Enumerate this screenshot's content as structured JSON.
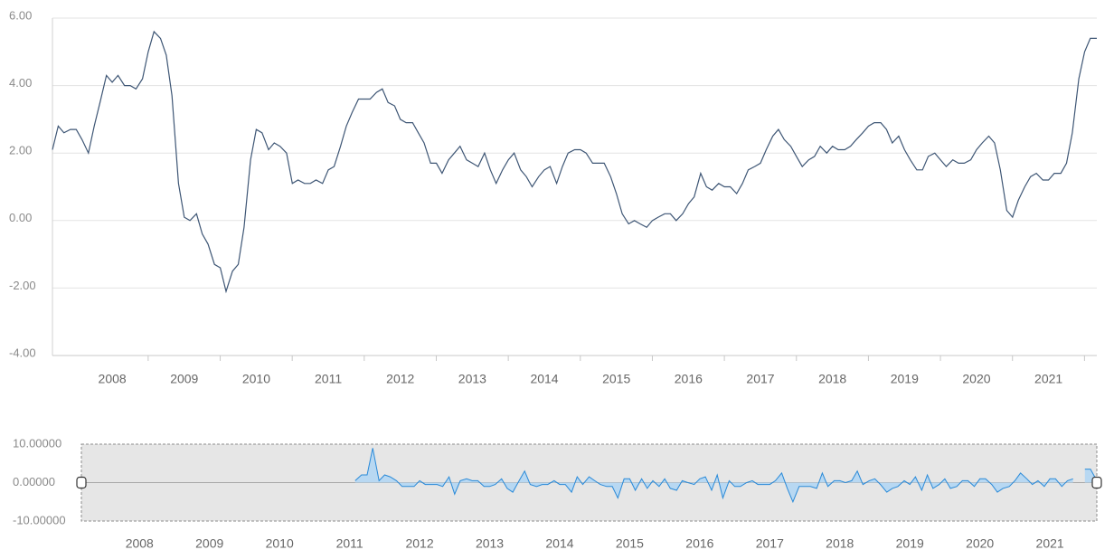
{
  "chart_data": [
    {
      "type": "line",
      "color": "#3e5675",
      "grid": true,
      "xlim": [
        2007.17,
        2021.67
      ],
      "ylim": [
        -4,
        6
      ],
      "xticks": [
        2008,
        2009,
        2010,
        2011,
        2012,
        2013,
        2014,
        2015,
        2016,
        2017,
        2018,
        2019,
        2020,
        2021
      ],
      "yticks": [
        {
          "value": 6,
          "label": "6.00"
        },
        {
          "value": 4,
          "label": "4.00"
        },
        {
          "value": 2,
          "label": "2.00"
        },
        {
          "value": 0,
          "label": "0.00"
        },
        {
          "value": -2,
          "label": "-2.00"
        },
        {
          "value": -4,
          "label": "-4.00"
        }
      ],
      "x": [
        2007.17,
        2007.25,
        2007.33,
        2007.42,
        2007.5,
        2007.58,
        2007.67,
        2007.75,
        2007.83,
        2007.92,
        2008,
        2008.08,
        2008.17,
        2008.25,
        2008.33,
        2008.42,
        2008.5,
        2008.58,
        2008.67,
        2008.75,
        2008.83,
        2008.92,
        2009,
        2009.08,
        2009.17,
        2009.25,
        2009.33,
        2009.42,
        2009.5,
        2009.58,
        2009.67,
        2009.75,
        2009.83,
        2009.92,
        2010,
        2010.08,
        2010.17,
        2010.25,
        2010.33,
        2010.42,
        2010.5,
        2010.58,
        2010.67,
        2010.75,
        2010.83,
        2010.92,
        2011,
        2011.08,
        2011.17,
        2011.25,
        2011.33,
        2011.42,
        2011.5,
        2011.58,
        2011.67,
        2011.75,
        2011.83,
        2011.92,
        2012,
        2012.08,
        2012.17,
        2012.25,
        2012.33,
        2012.42,
        2012.5,
        2012.58,
        2012.67,
        2012.75,
        2012.83,
        2012.92,
        2013,
        2013.08,
        2013.17,
        2013.25,
        2013.33,
        2013.42,
        2013.5,
        2013.58,
        2013.67,
        2013.75,
        2013.83,
        2013.92,
        2014,
        2014.08,
        2014.17,
        2014.25,
        2014.33,
        2014.42,
        2014.5,
        2014.58,
        2014.67,
        2014.75,
        2014.83,
        2014.92,
        2015,
        2015.08,
        2015.17,
        2015.25,
        2015.33,
        2015.42,
        2015.5,
        2015.58,
        2015.67,
        2015.75,
        2015.83,
        2015.92,
        2016,
        2016.08,
        2016.17,
        2016.25,
        2016.33,
        2016.42,
        2016.5,
        2016.58,
        2016.67,
        2016.75,
        2016.83,
        2016.92,
        2017,
        2017.08,
        2017.17,
        2017.25,
        2017.33,
        2017.42,
        2017.5,
        2017.58,
        2017.67,
        2017.75,
        2017.83,
        2017.92,
        2018,
        2018.08,
        2018.17,
        2018.25,
        2018.33,
        2018.42,
        2018.5,
        2018.58,
        2018.67,
        2018.75,
        2018.83,
        2018.92,
        2019,
        2019.08,
        2019.17,
        2019.25,
        2019.33,
        2019.42,
        2019.5,
        2019.58,
        2019.67,
        2019.75,
        2019.83,
        2019.92,
        2020,
        2020.08,
        2020.17,
        2020.25,
        2020.33,
        2020.42,
        2020.5,
        2020.58,
        2020.67,
        2020.75,
        2020.83,
        2020.92,
        2021,
        2021.08,
        2021.17,
        2021.25,
        2021.33,
        2021.42,
        2021.5,
        2021.58,
        2021.67
      ],
      "values": [
        2.1,
        2.8,
        2.6,
        2.7,
        2.7,
        2.4,
        2.0,
        2.8,
        3.5,
        4.3,
        4.1,
        4.3,
        4.0,
        4.0,
        3.9,
        4.2,
        5.0,
        5.6,
        5.4,
        4.9,
        3.7,
        1.1,
        0.1,
        0.0,
        0.2,
        -0.4,
        -0.7,
        -1.3,
        -1.4,
        -2.1,
        -1.5,
        -1.3,
        -0.2,
        1.8,
        2.7,
        2.6,
        2.1,
        2.3,
        2.2,
        2.0,
        1.1,
        1.2,
        1.1,
        1.1,
        1.2,
        1.1,
        1.5,
        1.6,
        2.2,
        2.8,
        3.2,
        3.6,
        3.6,
        3.6,
        3.8,
        3.9,
        3.5,
        3.4,
        3.0,
        2.9,
        2.9,
        2.6,
        2.3,
        1.7,
        1.7,
        1.4,
        1.8,
        2.0,
        2.2,
        1.8,
        1.7,
        1.6,
        2.0,
        1.5,
        1.1,
        1.5,
        1.8,
        2.0,
        1.5,
        1.3,
        1.0,
        1.3,
        1.5,
        1.6,
        1.1,
        1.6,
        2.0,
        2.1,
        2.1,
        2.0,
        1.7,
        1.7,
        1.7,
        1.3,
        0.8,
        0.2,
        -0.1,
        0.0,
        -0.1,
        -0.2,
        0.0,
        0.1,
        0.2,
        0.2,
        0.0,
        0.2,
        0.5,
        0.7,
        1.4,
        1.0,
        0.9,
        1.1,
        1.0,
        1.0,
        0.8,
        1.1,
        1.5,
        1.6,
        1.7,
        2.1,
        2.5,
        2.7,
        2.4,
        2.2,
        1.9,
        1.6,
        1.8,
        1.9,
        2.2,
        2.0,
        2.2,
        2.1,
        2.1,
        2.2,
        2.4,
        2.6,
        2.8,
        2.9,
        2.9,
        2.7,
        2.3,
        2.5,
        2.1,
        1.8,
        1.5,
        1.5,
        1.9,
        2.0,
        1.8,
        1.6,
        1.8,
        1.7,
        1.7,
        1.8,
        2.1,
        2.3,
        2.5,
        2.3,
        1.5,
        0.3,
        0.1,
        0.6,
        1.0,
        1.3,
        1.4,
        1.2,
        1.2,
        1.4,
        1.4,
        1.7,
        2.6,
        4.2,
        5.0,
        5.4,
        5.4
      ]
    },
    {
      "type": "area",
      "color": "#2a8ad8",
      "fill": "#b8d8f2",
      "background": "#e6e6e6",
      "xlim": [
        2007.17,
        2021.67
      ],
      "ylim": [
        -10,
        10
      ],
      "xticks": [
        2008,
        2009,
        2010,
        2011,
        2012,
        2013,
        2014,
        2015,
        2016,
        2017,
        2018,
        2019,
        2020,
        2021
      ],
      "yticks": [
        {
          "value": 10,
          "label": "10.00000"
        },
        {
          "value": 0,
          "label": "0.00000"
        },
        {
          "value": -10,
          "label": "-10.00000"
        }
      ],
      "x": [
        2011.08,
        2011.17,
        2011.25,
        2011.33,
        2011.42,
        2011.5,
        2011.58,
        2011.67,
        2011.75,
        2011.83,
        2011.92,
        2012,
        2012.08,
        2012.17,
        2012.25,
        2012.33,
        2012.42,
        2012.5,
        2012.58,
        2012.67,
        2012.75,
        2012.83,
        2012.92,
        2013,
        2013.08,
        2013.17,
        2013.25,
        2013.33,
        2013.42,
        2013.5,
        2013.58,
        2013.67,
        2013.75,
        2013.83,
        2013.92,
        2014,
        2014.08,
        2014.17,
        2014.25,
        2014.33,
        2014.42,
        2014.5,
        2014.58,
        2014.67,
        2014.75,
        2014.83,
        2014.92,
        2015,
        2015.08,
        2015.17,
        2015.25,
        2015.33,
        2015.42,
        2015.5,
        2015.58,
        2015.67,
        2015.75,
        2015.83,
        2015.92,
        2016,
        2016.08,
        2016.17,
        2016.25,
        2016.33,
        2016.42,
        2016.5,
        2016.58,
        2016.67,
        2016.75,
        2016.83,
        2016.92,
        2017,
        2017.08,
        2017.17,
        2017.25,
        2017.33,
        2017.42,
        2017.5,
        2017.58,
        2017.67,
        2017.75,
        2017.83,
        2017.92,
        2018,
        2018.08,
        2018.17,
        2018.25,
        2018.33,
        2018.42,
        2018.5,
        2018.58,
        2018.67,
        2018.75,
        2018.83,
        2018.92,
        2019,
        2019.08,
        2019.17,
        2019.25,
        2019.33,
        2019.42,
        2019.5,
        2019.58,
        2019.67,
        2019.75,
        2019.83,
        2019.92,
        2020,
        2020.08,
        2020.17,
        2020.25,
        2020.33,
        2020.42,
        2020.5,
        2020.58,
        2020.67,
        2020.75,
        2020.83,
        2020.92,
        2021,
        2021.08,
        2021.17,
        2021.25,
        2021.33,
        2021.42,
        2021.5,
        2021.58,
        2021.67
      ],
      "values": [
        0.5,
        2.0,
        2.0,
        9.0,
        0.5,
        2.0,
        1.5,
        0.5,
        -1.0,
        -1.0,
        -1.0,
        0.5,
        -0.5,
        -0.5,
        -0.5,
        -1.0,
        1.5,
        -3.0,
        0.5,
        1.0,
        0.5,
        0.5,
        -1.0,
        -1.0,
        -0.5,
        1.0,
        -1.5,
        -2.5,
        0.5,
        3.0,
        -0.5,
        -1.0,
        -0.5,
        -0.5,
        0.5,
        -0.5,
        -0.5,
        -2.5,
        1.5,
        -0.5,
        1.5,
        0.5,
        -0.5,
        -1.0,
        -1.0,
        -4.0,
        1.0,
        1.0,
        -2.0,
        1.0,
        -1.5,
        0.5,
        -1.0,
        1.0,
        -1.5,
        -2.0,
        0.5,
        0.0,
        -0.5,
        1.0,
        1.5,
        -2.0,
        2.0,
        -4.0,
        0.5,
        -1.0,
        -1.0,
        0.0,
        0.5,
        -0.5,
        -0.5,
        -0.5,
        0.5,
        2.5,
        -1.5,
        -5.0,
        -1.0,
        -1.0,
        -1.0,
        -1.5,
        2.5,
        -1.0,
        0.5,
        0.5,
        0.0,
        0.5,
        3.0,
        -0.5,
        0.5,
        1.0,
        -0.5,
        -2.5,
        -1.5,
        -1.0,
        0.5,
        -0.5,
        1.5,
        -2.0,
        2.0,
        -1.5,
        -0.5,
        1.0,
        -1.5,
        -1.0,
        0.5,
        0.5,
        -1.0,
        1.0,
        1.0,
        -0.5,
        -2.5,
        -1.5,
        -1.0,
        0.5,
        2.5,
        1.0,
        -0.5,
        0.5,
        -1.0,
        1.0,
        1.0,
        -1.0,
        0.5,
        1.0,
        null,
        3.5,
        3.5,
        0.5
      ]
    }
  ]
}
